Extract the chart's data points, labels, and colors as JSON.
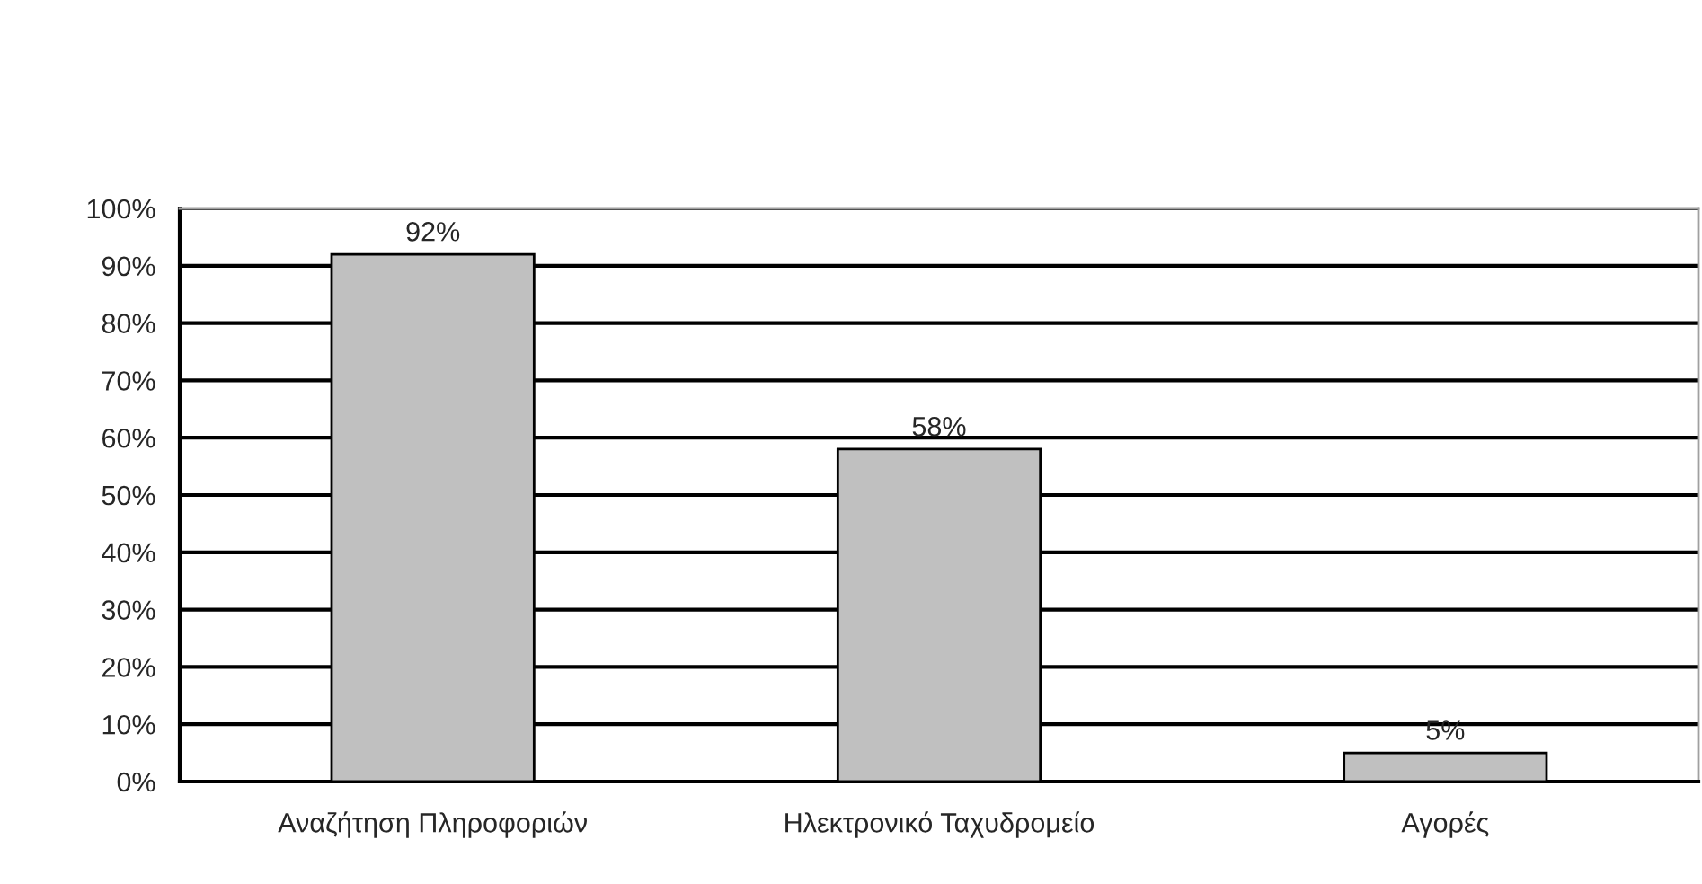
{
  "chart_data": {
    "type": "bar",
    "categories": [
      "Αναζήτηση Πληροφοριών",
      "Ηλεκτρονικό Ταχυδρομείο",
      "Αγορές"
    ],
    "values": [
      92,
      58,
      5
    ],
    "color": "#c0c0c0",
    "value_labels": [
      "92%",
      "58%",
      "5%"
    ],
    "ylim": [
      0,
      100
    ],
    "yticks": [
      {
        "value": 0,
        "label": "0%"
      },
      {
        "value": 10,
        "label": "10%"
      },
      {
        "value": 20,
        "label": "20%"
      },
      {
        "value": 30,
        "label": "30%"
      },
      {
        "value": 40,
        "label": "40%"
      },
      {
        "value": 50,
        "label": "50%"
      },
      {
        "value": 60,
        "label": "60%"
      },
      {
        "value": 70,
        "label": "70%"
      },
      {
        "value": 80,
        "label": "80%"
      },
      {
        "value": 90,
        "label": "90%"
      },
      {
        "value": 100,
        "label": "100%"
      }
    ],
    "grid": "y",
    "legend": false
  }
}
